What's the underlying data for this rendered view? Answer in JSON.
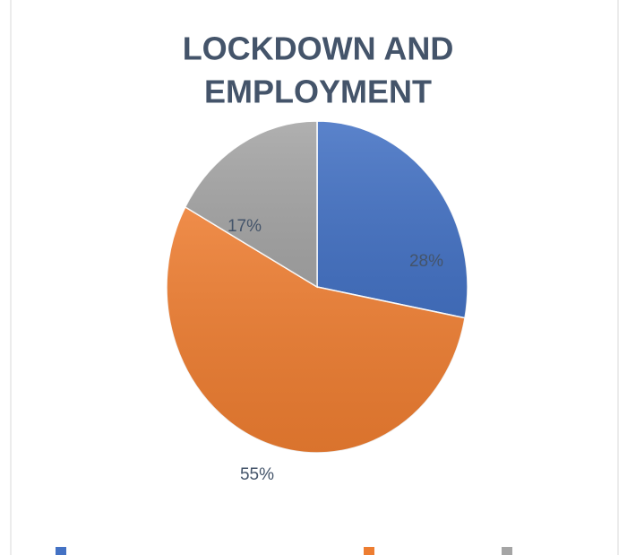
{
  "chart_data": {
    "type": "pie",
    "title": [
      "LOCKDOWN AND",
      "EMPLOYMENT"
    ],
    "values": [
      28,
      55,
      17
    ],
    "value_labels": [
      "28%",
      "55%",
      "17%"
    ],
    "colors": [
      "#4472c4",
      "#ed7d31",
      "#a5a5a5"
    ],
    "legend": "bottom"
  }
}
